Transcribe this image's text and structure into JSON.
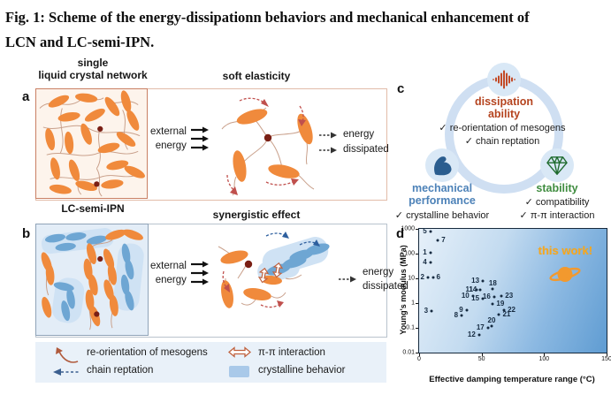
{
  "ui": {
    "check": "✓"
  },
  "figure": {
    "title_line1": "Fig. 1: Scheme of the energy-dissipationn behaviors and mechanical enhancement of",
    "title_line2": "LCN and LC-semi-IPN."
  },
  "panel_a": {
    "label": "a",
    "heading_line1": "single",
    "heading_line2": "liquid crystal network",
    "subtitle": "soft elasticity",
    "external_word1": "external",
    "external_word2": "energy",
    "dissipated_word1": "energy",
    "dissipated_word2": "dissipated"
  },
  "panel_b": {
    "label": "b",
    "heading": "LC-semi-IPN",
    "subtitle": "synergistic effect",
    "external_word1": "external",
    "external_word2": "energy",
    "dissipated_word1": "energy",
    "dissipated_word2": "dissipated"
  },
  "legend": {
    "items": [
      {
        "icon": "reorientation-arrow-icon",
        "label": "re-orientation of mesogens"
      },
      {
        "icon": "chain-reptation-arrow-icon",
        "label": "chain reptation"
      },
      {
        "icon": "pi-pi-arrow-icon",
        "label": "π-π interaction"
      },
      {
        "icon": "crystalline-swatch-icon",
        "label": "crystalline behavior"
      }
    ]
  },
  "panel_c": {
    "label": "c",
    "dissipation": {
      "title_line1": "dissipation",
      "title_line2": "ability",
      "check1": "re-orientation of mesogens",
      "check2": "chain reptation"
    },
    "mechanical": {
      "title_line1": "mechanical",
      "title_line2": "performance",
      "check1": "crystalline behavior"
    },
    "stability": {
      "title": "stability",
      "check1": "compatibility",
      "check2": "π-π interaction"
    }
  },
  "panel_d": {
    "label": "d"
  },
  "chart_data": {
    "type": "scatter",
    "xlabel": "Effective damping temperature range (°C)",
    "ylabel": "Young's modulus (MPa)",
    "xlim": [
      0,
      150
    ],
    "ylim": [
      0.01,
      1000
    ],
    "y_scale": "log",
    "x_ticks": [
      "0",
      "50",
      "100",
      "150"
    ],
    "y_ticks": [
      "1000",
      "100",
      "10",
      "1",
      "0.1",
      "0.01"
    ],
    "annotation": {
      "label": "this work!",
      "x": 117,
      "y": 12,
      "marker": "saturn-icon"
    },
    "points": [
      {
        "label": "1",
        "x": 9,
        "y": 110,
        "side": "l"
      },
      {
        "label": "2",
        "x": 7,
        "y": 11,
        "side": "l"
      },
      {
        "label": "3",
        "x": 10,
        "y": 0.47,
        "side": "l"
      },
      {
        "label": "4",
        "x": 9,
        "y": 44,
        "side": "l"
      },
      {
        "label": "5",
        "x": 9,
        "y": 780,
        "side": "l"
      },
      {
        "label": "6",
        "x": 11,
        "y": 11,
        "side": "r"
      },
      {
        "label": "7",
        "x": 15,
        "y": 350,
        "side": "r"
      },
      {
        "label": "8",
        "x": 34,
        "y": 0.32,
        "side": "l"
      },
      {
        "label": "9",
        "x": 38,
        "y": 0.53,
        "side": "l"
      },
      {
        "label": "10",
        "x": 43,
        "y": 1.9,
        "side": "l"
      },
      {
        "label": "11",
        "x": 46,
        "y": 3.4,
        "side": "l"
      },
      {
        "label": "12",
        "x": 48,
        "y": 0.05,
        "side": "l"
      },
      {
        "label": "13",
        "x": 51,
        "y": 7.8,
        "side": "l"
      },
      {
        "label": "14",
        "x": 49,
        "y": 3.4,
        "side": "l"
      },
      {
        "label": "15",
        "x": 51,
        "y": 1.5,
        "side": "l"
      },
      {
        "label": "16",
        "x": 60,
        "y": 1.8,
        "side": "l"
      },
      {
        "label": "17",
        "x": 55,
        "y": 0.1,
        "side": "l"
      },
      {
        "label": "18",
        "x": 59,
        "y": 3.7,
        "side": "a"
      },
      {
        "label": "19",
        "x": 59,
        "y": 0.9,
        "side": "r"
      },
      {
        "label": "20",
        "x": 58,
        "y": 0.12,
        "side": "a"
      },
      {
        "label": "21",
        "x": 64,
        "y": 0.35,
        "side": "r"
      },
      {
        "label": "22",
        "x": 68,
        "y": 0.5,
        "side": "r"
      },
      {
        "label": "23",
        "x": 66,
        "y": 1.9,
        "side": "r"
      }
    ]
  },
  "colors": {
    "mesogen_orange": "#f08a3c",
    "mesogen_blue": "#6ea6d3",
    "crosslink_maroon": "#7a1f14",
    "dissipation_text": "#b5441f",
    "mechanical_text": "#4d82b8",
    "stability_text": "#3f8c3f",
    "this_work_orange": "#f9a71b"
  }
}
